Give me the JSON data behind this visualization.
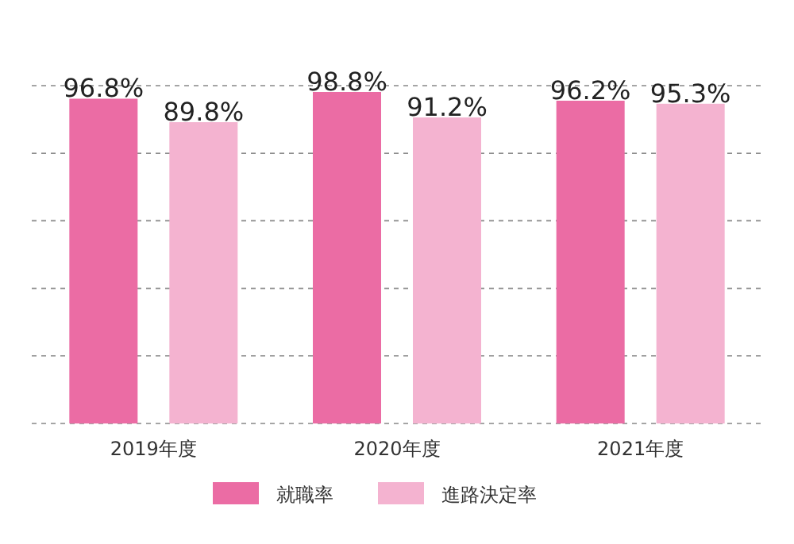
{
  "chart_data": {
    "type": "bar",
    "categories": [
      "2019年度",
      "2020年度",
      "2021年度"
    ],
    "series": [
      {
        "name": "就職率",
        "color": "#eb6ca4",
        "values": [
          96.8,
          98.8,
          96.2
        ],
        "value_labels": [
          "96.8%",
          "98.8%",
          "96.2%"
        ]
      },
      {
        "name": "進路決定率",
        "color": "#f4b3d0",
        "values": [
          89.8,
          91.2,
          95.3
        ],
        "value_labels": [
          "89.8%",
          "91.2%",
          "95.3%"
        ]
      }
    ],
    "grid": "y",
    "legend": "bottom",
    "tick_labels": "x"
  }
}
